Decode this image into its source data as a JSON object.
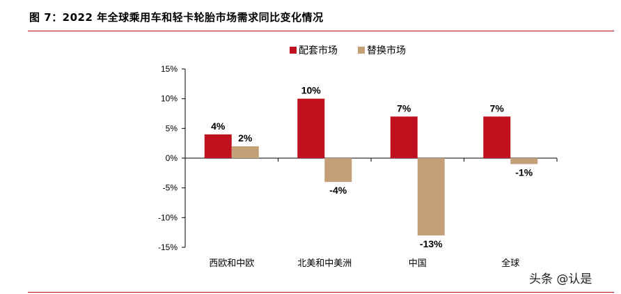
{
  "figure": {
    "title": "图 7：2022 年全球乘用车和轻卡轮胎市场需求同比变化情况",
    "watermark": "头条 @认是"
  },
  "chart_data": {
    "type": "bar",
    "categories": [
      "西欧和中欧",
      "北美和中美洲",
      "中国",
      "全球"
    ],
    "series": [
      {
        "name": "配套市场",
        "values": [
          4,
          10,
          7,
          7
        ],
        "labels": [
          "4%",
          "10%",
          "7%",
          "7%"
        ],
        "color": "#c0111f"
      },
      {
        "name": "替换市场",
        "values": [
          2,
          -4,
          -13,
          -1
        ],
        "labels": [
          "2%",
          "-4%",
          "-13%",
          "-1%"
        ],
        "color": "#c4a079"
      }
    ],
    "yticks": [
      15,
      10,
      5,
      0,
      -5,
      -10,
      -15
    ],
    "ytick_labels": [
      "15%",
      "10%",
      "5%",
      "0%",
      "-5%",
      "-10%",
      "-15%"
    ],
    "ylim": [
      -15,
      15
    ],
    "title": "",
    "xlabel": "",
    "ylabel": "",
    "legend_position": "top",
    "grid": false
  }
}
